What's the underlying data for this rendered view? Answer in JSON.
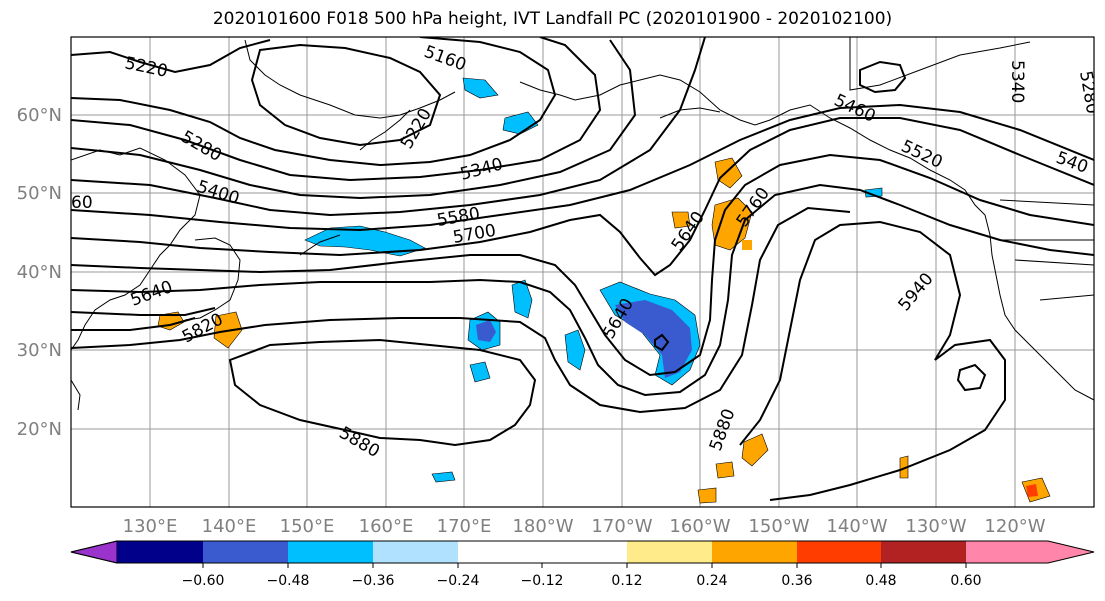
{
  "title": "2020101600 F018 500 hPa height, IVT Landfall PC (2020101900 - 2020102100)",
  "lat_labels": [
    "60°N",
    "50°N",
    "40°N",
    "30°N",
    "20°N"
  ],
  "lon_labels": [
    "130°E",
    "140°E",
    "150°E",
    "160°E",
    "170°E",
    "180°W",
    "170°W",
    "160°W",
    "150°W",
    "140°W",
    "130°W",
    "120°W"
  ],
  "contour_labels": [
    "5220",
    "5160",
    "5220",
    "5280",
    "5340",
    "5400",
    "5460",
    "5520",
    "5580",
    "5700",
    "5640",
    "5760",
    "5640",
    "5640",
    "5820",
    "5940",
    "5880",
    "5880",
    "5340",
    "5280",
    "540",
    "60"
  ],
  "colorbar": {
    "colors": [
      "#9933cc",
      "#00008b",
      "#3a5bd0",
      "#00bfff",
      "#b0e2ff",
      "#ffffff",
      "#ffeb8a",
      "#ffa500",
      "#ff3d00",
      "#b22222",
      "#ff85aa"
    ],
    "tick_labels": [
      "−0.60",
      "−0.48",
      "−0.36",
      "−0.24",
      "−0.12",
      "0.12",
      "0.24",
      "0.36",
      "0.48",
      "0.60"
    ]
  }
}
